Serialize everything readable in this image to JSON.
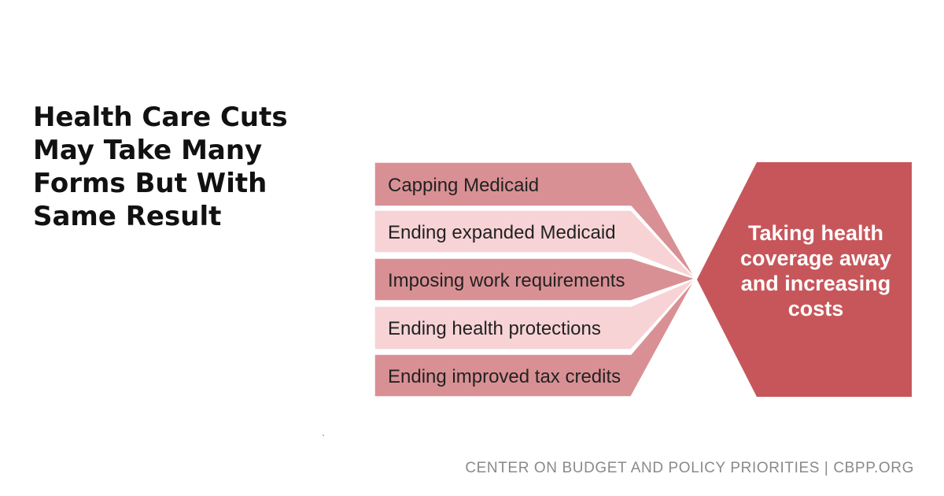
{
  "title": "Health Care Cuts May Take Many Forms But With Same Result",
  "items": [
    {
      "label": "Capping Medicaid",
      "color": "#d99094"
    },
    {
      "label": "Ending expanded Medicaid",
      "color": "#f7d3d5"
    },
    {
      "label": "Imposing work requirements",
      "color": "#d99094"
    },
    {
      "label": "Ending health protections",
      "color": "#f7d3d5"
    },
    {
      "label": "Ending improved tax credits",
      "color": "#d99094"
    }
  ],
  "result": {
    "lines": [
      "Taking health",
      "coverage away",
      "and increasing",
      "costs"
    ],
    "color": "#c7565a"
  },
  "footer": "CENTER ON BUDGET AND POLICY PRIORITIES | CBPP.ORG"
}
